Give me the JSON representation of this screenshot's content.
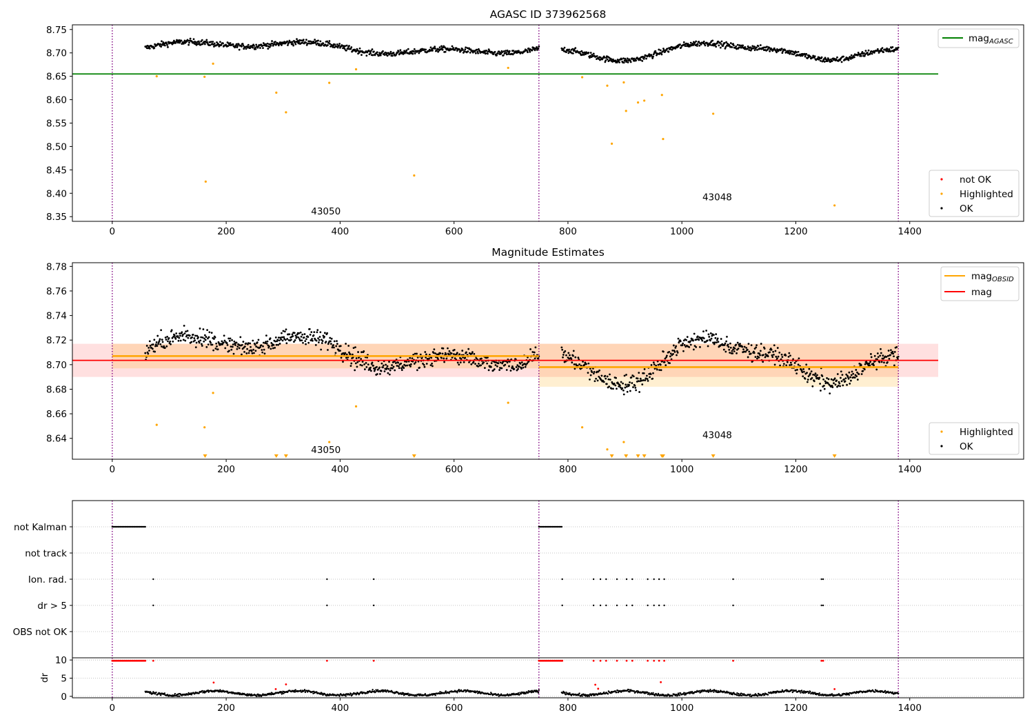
{
  "chart_data": [
    {
      "type": "scatter",
      "title": "AGASC ID 373962568",
      "xlim": [
        -70,
        1600
      ],
      "ylim": [
        8.34,
        8.76
      ],
      "xticks": [
        0,
        200,
        400,
        600,
        800,
        1000,
        1200,
        1400
      ],
      "yticks": [
        8.35,
        8.4,
        8.45,
        8.5,
        8.55,
        8.6,
        8.65,
        8.7,
        8.75
      ],
      "vlines": [
        0,
        749,
        1380
      ],
      "hline": {
        "name": "mag_AGASC",
        "y": 8.655,
        "x": [
          -70,
          1450
        ],
        "color": "#008000"
      },
      "annotations": [
        {
          "text": "43050",
          "x": 375,
          "y": 8.355
        },
        {
          "text": "43048",
          "x": 1062,
          "y": 8.385
        }
      ],
      "ok_segments": [
        {
          "x0": 58,
          "x1": 749,
          "base": 8.708
        },
        {
          "x0": 789,
          "x1": 1380,
          "base": 8.7
        }
      ],
      "highlighted_points": [
        {
          "x": 78,
          "y": 8.65
        },
        {
          "x": 162,
          "y": 8.649
        },
        {
          "x": 164,
          "y": 8.425
        },
        {
          "x": 177,
          "y": 8.677
        },
        {
          "x": 288,
          "y": 8.615
        },
        {
          "x": 305,
          "y": 8.573
        },
        {
          "x": 381,
          "y": 8.636
        },
        {
          "x": 428,
          "y": 8.665
        },
        {
          "x": 530,
          "y": 8.438
        },
        {
          "x": 695,
          "y": 8.668
        },
        {
          "x": 825,
          "y": 8.648
        },
        {
          "x": 869,
          "y": 8.63
        },
        {
          "x": 877,
          "y": 8.506
        },
        {
          "x": 898,
          "y": 8.637
        },
        {
          "x": 902,
          "y": 8.576
        },
        {
          "x": 923,
          "y": 8.594
        },
        {
          "x": 934,
          "y": 8.598
        },
        {
          "x": 965,
          "y": 8.61
        },
        {
          "x": 967,
          "y": 8.516
        },
        {
          "x": 1055,
          "y": 8.57
        },
        {
          "x": 1268,
          "y": 8.374
        }
      ],
      "legend_lines": [
        {
          "label": "mag",
          "sub": "AGASC",
          "color": "#008000"
        }
      ],
      "legend_points": [
        {
          "label": "not OK",
          "color": "#ff0000"
        },
        {
          "label": "Highlighted",
          "color": "#ffa500"
        },
        {
          "label": "OK",
          "color": "#000000"
        }
      ]
    },
    {
      "type": "scatter",
      "title": "Magnitude Estimates",
      "xlim": [
        -70,
        1600
      ],
      "ylim": [
        8.623,
        8.783
      ],
      "xticks": [
        0,
        200,
        400,
        600,
        800,
        1000,
        1200,
        1400
      ],
      "yticks": [
        8.64,
        8.66,
        8.68,
        8.7,
        8.72,
        8.74,
        8.76,
        8.78
      ],
      "vlines": [
        0,
        749,
        1380
      ],
      "mag": {
        "y": 8.7035,
        "band": [
          8.69,
          8.717
        ],
        "x": [
          -70,
          1450
        ],
        "color": "#ff0000"
      },
      "mag_obsid": [
        {
          "x": [
            0,
            749
          ],
          "y": 8.707,
          "band": [
            8.697,
            8.717
          ]
        },
        {
          "x": [
            749,
            1380
          ],
          "y": 8.698,
          "band": [
            8.682,
            8.717
          ]
        }
      ],
      "annotations": [
        {
          "text": "43050",
          "x": 375,
          "y": 8.628
        },
        {
          "text": "43048",
          "x": 1062,
          "y": 8.64
        }
      ],
      "highlighted_points": [
        {
          "x": 78,
          "y": 8.651
        },
        {
          "x": 162,
          "y": 8.649
        },
        {
          "x": 177,
          "y": 8.677
        },
        {
          "x": 381,
          "y": 8.637
        },
        {
          "x": 428,
          "y": 8.666
        },
        {
          "x": 695,
          "y": 8.669
        },
        {
          "x": 825,
          "y": 8.649
        },
        {
          "x": 869,
          "y": 8.631
        },
        {
          "x": 898,
          "y": 8.637
        }
      ],
      "triangle_x": [
        163,
        288,
        305,
        530,
        877,
        902,
        923,
        934,
        965,
        967,
        1055,
        1268
      ],
      "legend_lines": [
        {
          "label": "mag",
          "sub": "OBSID",
          "color": "#ffa500"
        },
        {
          "label": "mag",
          "sub": "",
          "color": "#ff0000"
        }
      ],
      "legend_points": [
        {
          "label": "Highlighted",
          "color": "#ffa500"
        },
        {
          "label": "OK",
          "color": "#000000"
        }
      ]
    },
    {
      "type": "scatter",
      "title": "",
      "xlim": [
        -70,
        1600
      ],
      "categories": [
        "not Kalman",
        "not track",
        "Ion. rad.",
        "dr > 5",
        "OBS not OK"
      ],
      "vlines": [
        0,
        749,
        1380
      ],
      "not_kalman_ranges": [
        [
          0,
          58
        ],
        [
          749,
          789
        ]
      ],
      "ion_rad_x": [
        72,
        377,
        459,
        790,
        845,
        857,
        867,
        886,
        903,
        913,
        940,
        951,
        960,
        969,
        1090,
        1245,
        1248
      ],
      "dr5_x": [
        72,
        377,
        459,
        790,
        845,
        857,
        867,
        886,
        903,
        913,
        940,
        951,
        960,
        969,
        1090,
        1245,
        1248
      ],
      "dr_yticks": [
        0,
        5,
        10
      ],
      "dr_ylim": [
        -0.4,
        10.6
      ],
      "dr_outliers": [
        {
          "x": 178,
          "y": 3.8
        },
        {
          "x": 287,
          "y": 2.0
        },
        {
          "x": 305,
          "y": 3.3
        },
        {
          "x": 848,
          "y": 3.2
        },
        {
          "x": 853,
          "y": 2.1
        },
        {
          "x": 963,
          "y": 3.9
        },
        {
          "x": 1268,
          "y": 2.0
        }
      ],
      "ylabel": "dr"
    }
  ]
}
